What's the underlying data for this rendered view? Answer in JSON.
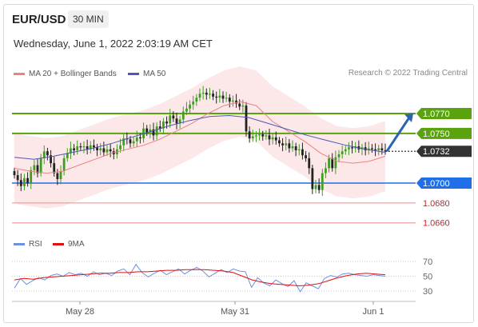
{
  "header": {
    "symbol": "EUR/USD",
    "timeframe": "30 MIN",
    "datetime": "Wednesday, June 1, 2022 2:03:19 AM CET",
    "credit": "Research © 2022 Trading Central"
  },
  "legend": {
    "ma_bb": "MA 20 + Bollinger Bands",
    "ma50": "MA 50",
    "rsi": "RSI",
    "ma9": "9MA"
  },
  "colors": {
    "bull": "#3f9e22",
    "bear": "#222222",
    "ma20": "#f08080",
    "bollinger_fill": "#fbdede",
    "ma50": "#4a58b8",
    "resistance": "#5aa30f",
    "support": "#1e6fe8",
    "target": "#f0a0a0",
    "current": "#333333",
    "arrow": "#2d64b0",
    "rsi": "#6f8fe0",
    "ma9": "#e01010"
  },
  "chart_data": [
    {
      "type": "candlestick",
      "title": "EUR/USD 30 MIN",
      "x_ticks": [
        "May 28",
        "May 31",
        "Jun 1"
      ],
      "levels": [
        {
          "label": "1.0770",
          "value": 1.077,
          "kind": "resistance"
        },
        {
          "label": "1.0750",
          "value": 1.075,
          "kind": "resistance"
        },
        {
          "label": "1.0732",
          "value": 1.0732,
          "kind": "current"
        },
        {
          "label": "1.0700",
          "value": 1.07,
          "kind": "support"
        },
        {
          "label": "1.0680",
          "value": 1.068,
          "kind": "target"
        },
        {
          "label": "1.0660",
          "value": 1.066,
          "kind": "target"
        }
      ],
      "close": [
        1.0708,
        1.0703,
        1.0697,
        1.0705,
        1.07,
        1.0713,
        1.0718,
        1.071,
        1.0725,
        1.0732,
        1.0728,
        1.072,
        1.071,
        1.0704,
        1.0712,
        1.0725,
        1.073,
        1.0735,
        1.0733,
        1.0737,
        1.0736,
        1.0737,
        1.0734,
        1.0738,
        1.0736,
        1.0733,
        1.0735,
        1.0731,
        1.0734,
        1.0732,
        1.0729,
        1.0734,
        1.0738,
        1.0745,
        1.0744,
        1.074,
        1.0742,
        1.0746,
        1.0745,
        1.0755,
        1.0751,
        1.0754,
        1.0748,
        1.0757,
        1.0755,
        1.0762,
        1.076,
        1.0768,
        1.0765,
        1.076,
        1.0764,
        1.0772,
        1.0775,
        1.0779,
        1.0782,
        1.0786,
        1.079,
        1.0791,
        1.0789,
        1.079,
        1.0787,
        1.0786,
        1.0788,
        1.0785,
        1.0786,
        1.0782,
        1.0783,
        1.078,
        1.0777,
        1.0778,
        1.0752,
        1.0745,
        1.0747,
        1.0748,
        1.0749,
        1.0747,
        1.0748,
        1.0744,
        1.0746,
        1.0743,
        1.074,
        1.0738,
        1.074,
        1.0735,
        1.0737,
        1.0733,
        1.0734,
        1.0728,
        1.0725,
        1.0715,
        1.0694,
        1.0698,
        1.0693,
        1.071,
        1.0715,
        1.0725,
        1.0715,
        1.0726,
        1.0729,
        1.0732,
        1.0734,
        1.0736,
        1.0735,
        1.0737,
        1.0734,
        1.0736,
        1.0733,
        1.0735,
        1.0734,
        1.0733,
        1.0735,
        1.0733,
        1.0732
      ],
      "ma20_approx": [
        1.0715,
        1.0712,
        1.071,
        1.0712,
        1.0718,
        1.0724,
        1.073,
        1.0734,
        1.0738,
        1.0744,
        1.0752,
        1.076,
        1.077,
        1.0778,
        1.0782,
        1.0778,
        1.0762,
        1.0752,
        1.0742,
        1.073,
        1.0722,
        1.072,
        1.0722,
        1.0727
      ],
      "ma50_approx": [
        1.0726,
        1.0724,
        1.0727,
        1.0731,
        1.0735,
        1.074,
        1.0746,
        1.0752,
        1.0758,
        1.0763,
        1.0767,
        1.0768,
        1.0766,
        1.076,
        1.0754,
        1.0748,
        1.0743,
        1.0738,
        1.0734,
        1.0731
      ],
      "projection": {
        "from": 1.0732,
        "to": 1.077
      }
    },
    {
      "type": "line",
      "title": "RSI",
      "y_ticks": [
        "70",
        "50",
        "30"
      ],
      "ylim": [
        30,
        70
      ],
      "series": [
        {
          "name": "RSI",
          "values": [
            34,
            47,
            39,
            44,
            48,
            45,
            51,
            53,
            50,
            55,
            52,
            54,
            50,
            56,
            52,
            54,
            51,
            57,
            60,
            52,
            66,
            55,
            49,
            54,
            58,
            52,
            56,
            60,
            53,
            58,
            62,
            57,
            49,
            54,
            59,
            55,
            60,
            57,
            56,
            35,
            48,
            41,
            37,
            45,
            40,
            36,
            44,
            29,
            41,
            37,
            33,
            47,
            51,
            49,
            53,
            54,
            52,
            51,
            50,
            52,
            51,
            50
          ]
        },
        {
          "name": "9MA",
          "values": [
            45,
            47,
            46,
            48,
            49,
            50,
            51,
            52,
            53,
            54,
            54,
            55,
            55,
            56,
            56,
            57,
            58,
            58,
            59,
            59,
            59,
            58,
            57,
            55,
            50,
            45,
            42,
            40,
            39,
            38,
            37,
            38,
            40,
            44,
            48,
            51,
            53,
            54,
            53,
            52
          ]
        }
      ]
    }
  ]
}
